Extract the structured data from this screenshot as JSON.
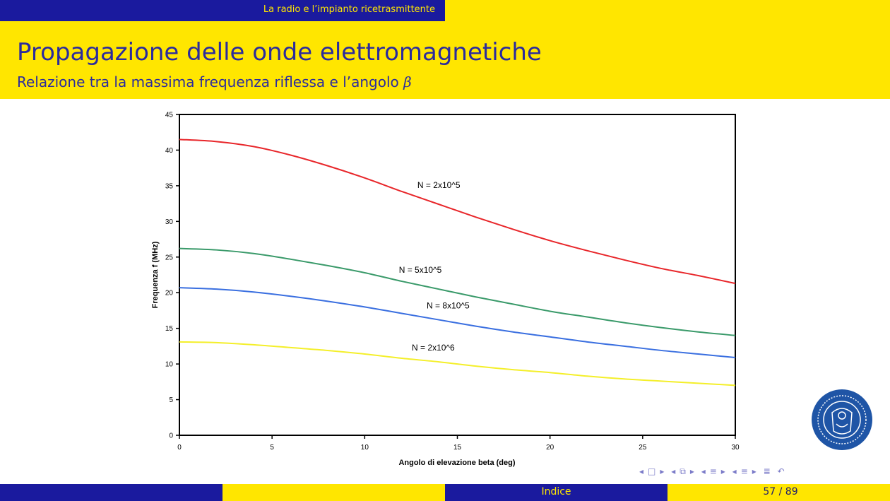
{
  "header": {
    "section": "La radio e l’impianto ricetrasmittente",
    "title": "Propagazione delle onde elettromagnetiche",
    "subtitle": "Relazione tra la massima frequenza riflessa e l’angolo",
    "subtitle_symbol": "β"
  },
  "footer": {
    "index_label": "Indice",
    "page": "57 / 89"
  },
  "colors": {
    "bar_blue": "#1a1a9e",
    "bar_yellow": "#ffe600",
    "title_text": "#2b2b9e",
    "seal": "#1f55a6"
  },
  "nav_icons": [
    "triangle-left-icon",
    "frame-icon",
    "triangle-right-icon",
    "triangle-left-icon",
    "subsection-icon",
    "triangle-right-icon",
    "triangle-left-icon",
    "section-icon",
    "triangle-right-icon",
    "triangle-left-icon",
    "section-icon",
    "triangle-right-icon",
    "align-icon",
    "search-undo-icon"
  ],
  "seal": {
    "icon": "university-seal-icon"
  },
  "chart_data": {
    "type": "line",
    "title": "",
    "xlabel": "Angolo di elevazione beta (deg)",
    "ylabel": "Frequenza f (MHz)",
    "xlim": [
      0,
      30
    ],
    "ylim": [
      0,
      45
    ],
    "xticks": [
      0,
      5,
      10,
      15,
      20,
      25,
      30
    ],
    "yticks": [
      0,
      5,
      10,
      15,
      20,
      25,
      30,
      35,
      40,
      45
    ],
    "grid": false,
    "x": [
      0,
      2,
      4,
      6,
      8,
      10,
      12,
      14,
      16,
      18,
      20,
      22,
      24,
      26,
      28,
      30
    ],
    "series": [
      {
        "name": "N = 2x10^5",
        "color": "#e8262a",
        "values": [
          41.5,
          41.2,
          40.5,
          39.3,
          37.8,
          36.1,
          34.2,
          32.4,
          30.6,
          28.9,
          27.3,
          25.9,
          24.6,
          23.4,
          22.4,
          21.3
        ]
      },
      {
        "name": "N = 5x10^5",
        "color": "#3a9a6a",
        "values": [
          26.2,
          26.0,
          25.5,
          24.7,
          23.8,
          22.8,
          21.6,
          20.5,
          19.4,
          18.4,
          17.4,
          16.6,
          15.8,
          15.1,
          14.5,
          14.0
        ]
      },
      {
        "name": "N = 8x10^5",
        "color": "#3a6fe0",
        "values": [
          20.7,
          20.5,
          20.1,
          19.5,
          18.8,
          18.0,
          17.1,
          16.2,
          15.3,
          14.5,
          13.8,
          13.1,
          12.5,
          11.9,
          11.4,
          10.9
        ]
      },
      {
        "name": "N = 2x10^6",
        "color": "#f4ef2a",
        "values": [
          13.1,
          13.0,
          12.7,
          12.3,
          11.9,
          11.4,
          10.8,
          10.3,
          9.7,
          9.2,
          8.8,
          8.3,
          7.9,
          7.6,
          7.3,
          7.0
        ]
      }
    ],
    "annotations": [
      {
        "text": "N = 2x10^5",
        "x": 14,
        "y": 34.7
      },
      {
        "text": "N = 5x10^5",
        "x": 13,
        "y": 22.8
      },
      {
        "text": "N = 8x10^5",
        "x": 14.5,
        "y": 17.8
      },
      {
        "text": "N = 2x10^6",
        "x": 13.7,
        "y": 11.9
      }
    ]
  }
}
